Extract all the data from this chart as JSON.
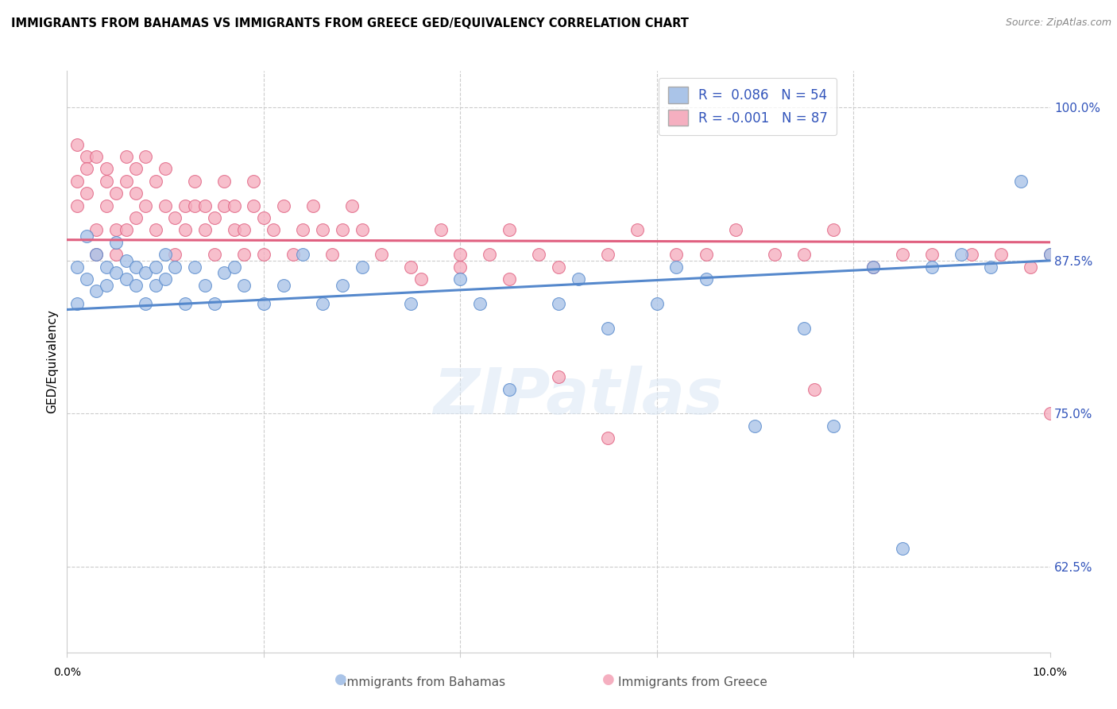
{
  "title": "IMMIGRANTS FROM BAHAMAS VS IMMIGRANTS FROM GREECE GED/EQUIVALENCY CORRELATION CHART",
  "source": "Source: ZipAtlas.com",
  "ylabel": "GED/Equivalency",
  "r_bahamas": 0.086,
  "n_bahamas": 54,
  "r_greece": -0.001,
  "n_greece": 87,
  "color_bahamas": "#aac4e8",
  "color_greece": "#f5afc0",
  "trendline_bahamas": "#5588cc",
  "trendline_greece": "#e06080",
  "watermark_text": "ZIPatlas",
  "xmin": 0.0,
  "xmax": 0.1,
  "ymin": 0.555,
  "ymax": 1.03,
  "yticks": [
    0.625,
    0.75,
    0.875,
    1.0
  ],
  "ytick_labels": [
    "62.5%",
    "75.0%",
    "87.5%",
    "100.0%"
  ],
  "trend_bahamas_y0": 0.835,
  "trend_bahamas_y1": 0.875,
  "trend_greece_y0": 0.892,
  "trend_greece_y1": 0.89,
  "bahamas_x": [
    0.001,
    0.001,
    0.002,
    0.002,
    0.003,
    0.003,
    0.004,
    0.004,
    0.005,
    0.005,
    0.006,
    0.006,
    0.007,
    0.007,
    0.008,
    0.008,
    0.009,
    0.009,
    0.01,
    0.01,
    0.011,
    0.012,
    0.013,
    0.014,
    0.015,
    0.016,
    0.017,
    0.018,
    0.02,
    0.022,
    0.024,
    0.026,
    0.028,
    0.03,
    0.035,
    0.04,
    0.042,
    0.045,
    0.05,
    0.052,
    0.055,
    0.06,
    0.062,
    0.065,
    0.07,
    0.075,
    0.078,
    0.082,
    0.085,
    0.088,
    0.091,
    0.094,
    0.097,
    0.1
  ],
  "bahamas_y": [
    0.84,
    0.87,
    0.86,
    0.895,
    0.85,
    0.88,
    0.855,
    0.87,
    0.865,
    0.89,
    0.875,
    0.86,
    0.87,
    0.855,
    0.865,
    0.84,
    0.87,
    0.855,
    0.88,
    0.86,
    0.87,
    0.84,
    0.87,
    0.855,
    0.84,
    0.865,
    0.87,
    0.855,
    0.84,
    0.855,
    0.88,
    0.84,
    0.855,
    0.87,
    0.84,
    0.86,
    0.84,
    0.77,
    0.84,
    0.86,
    0.82,
    0.84,
    0.87,
    0.86,
    0.74,
    0.82,
    0.74,
    0.87,
    0.64,
    0.87,
    0.88,
    0.87,
    0.94,
    0.88
  ],
  "greece_x": [
    0.001,
    0.001,
    0.001,
    0.002,
    0.002,
    0.002,
    0.003,
    0.003,
    0.003,
    0.004,
    0.004,
    0.004,
    0.005,
    0.005,
    0.005,
    0.006,
    0.006,
    0.006,
    0.007,
    0.007,
    0.007,
    0.008,
    0.008,
    0.009,
    0.009,
    0.01,
    0.01,
    0.011,
    0.011,
    0.012,
    0.012,
    0.013,
    0.013,
    0.014,
    0.014,
    0.015,
    0.015,
    0.016,
    0.016,
    0.017,
    0.017,
    0.018,
    0.018,
    0.019,
    0.019,
    0.02,
    0.02,
    0.021,
    0.022,
    0.023,
    0.024,
    0.025,
    0.026,
    0.027,
    0.028,
    0.029,
    0.03,
    0.032,
    0.035,
    0.038,
    0.04,
    0.043,
    0.045,
    0.048,
    0.05,
    0.055,
    0.058,
    0.062,
    0.065,
    0.068,
    0.072,
    0.075,
    0.078,
    0.082,
    0.085,
    0.088,
    0.092,
    0.095,
    0.098,
    0.1,
    0.036,
    0.04,
    0.045,
    0.05,
    0.055,
    0.076,
    0.1
  ],
  "greece_y": [
    0.92,
    0.94,
    0.97,
    0.93,
    0.96,
    0.95,
    0.96,
    0.9,
    0.88,
    0.95,
    0.92,
    0.94,
    0.93,
    0.9,
    0.88,
    0.96,
    0.94,
    0.9,
    0.93,
    0.95,
    0.91,
    0.92,
    0.96,
    0.94,
    0.9,
    0.92,
    0.95,
    0.91,
    0.88,
    0.92,
    0.9,
    0.94,
    0.92,
    0.9,
    0.92,
    0.88,
    0.91,
    0.92,
    0.94,
    0.9,
    0.92,
    0.88,
    0.9,
    0.92,
    0.94,
    0.88,
    0.91,
    0.9,
    0.92,
    0.88,
    0.9,
    0.92,
    0.9,
    0.88,
    0.9,
    0.92,
    0.9,
    0.88,
    0.87,
    0.9,
    0.88,
    0.88,
    0.9,
    0.88,
    0.87,
    0.88,
    0.9,
    0.88,
    0.88,
    0.9,
    0.88,
    0.88,
    0.9,
    0.87,
    0.88,
    0.88,
    0.88,
    0.88,
    0.87,
    0.88,
    0.86,
    0.87,
    0.86,
    0.78,
    0.73,
    0.77,
    0.75
  ]
}
